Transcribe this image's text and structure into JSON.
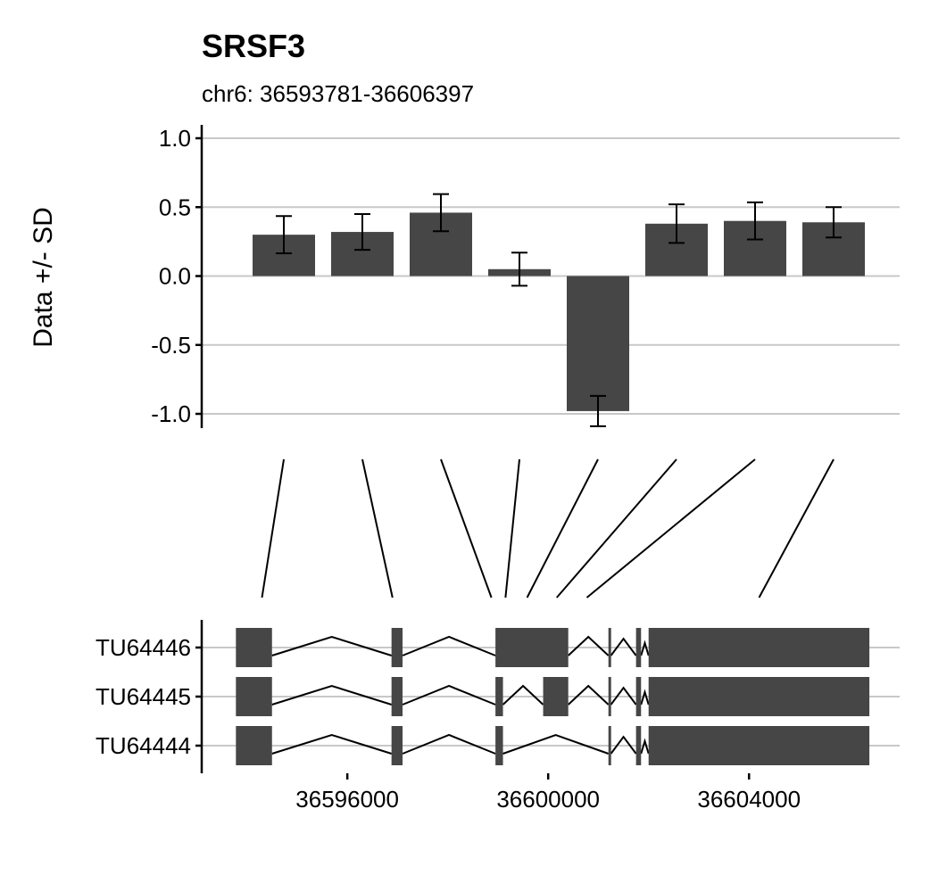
{
  "chart_data": {
    "type": "bar",
    "title": "SRSF3",
    "subtitle": "chr6: 36593781-36606397",
    "ylabel": "Data +/- SD",
    "ylim": [
      -1.0,
      1.0
    ],
    "yticks": [
      "1.0",
      "0.5",
      "0.0",
      "-0.5",
      "-1.0"
    ],
    "grid": true,
    "bars": [
      {
        "value": 0.3,
        "sd": 0.135
      },
      {
        "value": 0.32,
        "sd": 0.13
      },
      {
        "value": 0.46,
        "sd": 0.135
      },
      {
        "value": 0.05,
        "sd": 0.12
      },
      {
        "value": -0.98,
        "sd": 0.11
      },
      {
        "value": 0.38,
        "sd": 0.14
      },
      {
        "value": 0.4,
        "sd": 0.135
      },
      {
        "value": 0.39,
        "sd": 0.11
      }
    ],
    "exon_links": [
      36594300,
      36596900,
      36598870,
      36599150,
      36599580,
      36600170,
      36600770,
      36604200
    ],
    "gene_model": {
      "xlim": [
        36593100,
        36607000
      ],
      "xticks": [
        {
          "value": 36596000,
          "label": "36596000"
        },
        {
          "value": 36600000,
          "label": "36600000"
        },
        {
          "value": 36604000,
          "label": "36604000"
        }
      ],
      "transcripts": [
        {
          "name": "TU64446",
          "exons": [
            [
              36593781,
              36594500
            ],
            [
              36596880,
              36597100
            ],
            [
              36598950,
              36600400
            ],
            [
              36601200,
              36601250
            ],
            [
              36601750,
              36601850
            ],
            [
              36602000,
              36606397
            ]
          ]
        },
        {
          "name": "TU64445",
          "exons": [
            [
              36593781,
              36594500
            ],
            [
              36596880,
              36597100
            ],
            [
              36598950,
              36599100
            ],
            [
              36599900,
              36600400
            ],
            [
              36601200,
              36601250
            ],
            [
              36601750,
              36601850
            ],
            [
              36602000,
              36606397
            ]
          ]
        },
        {
          "name": "TU64444",
          "exons": [
            [
              36593781,
              36594500
            ],
            [
              36596880,
              36597100
            ],
            [
              36598950,
              36599100
            ],
            [
              36601200,
              36601250
            ],
            [
              36601750,
              36601850
            ],
            [
              36602000,
              36606397
            ]
          ]
        }
      ]
    }
  }
}
